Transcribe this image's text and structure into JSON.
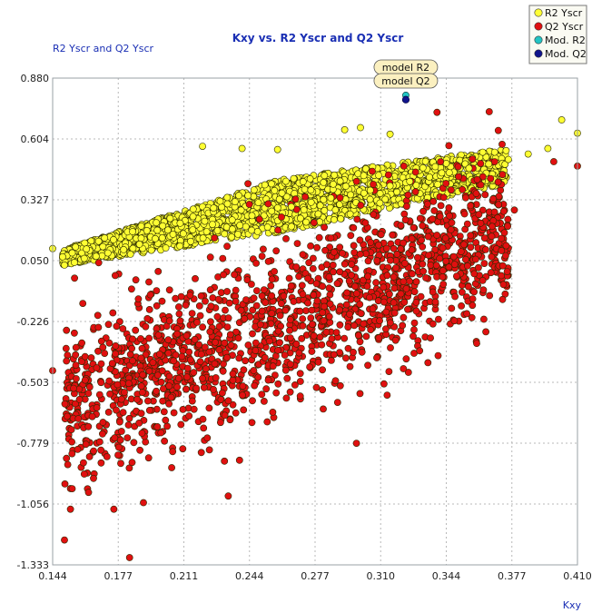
{
  "chart_data": {
    "type": "scatter",
    "title": "Kxy vs. R2 Yscr and Q2 Yscr",
    "xlabel": "Kxy",
    "ylabel": "R2 Yscr and Q2 Yscr",
    "xlim": [
      0.144,
      0.41
    ],
    "ylim": [
      -1.333,
      0.88
    ],
    "x_ticks": [
      "0.144",
      "0.177",
      "0.211",
      "0.244",
      "0.277",
      "0.310",
      "0.344",
      "0.377",
      "0.410"
    ],
    "y_ticks": [
      "0.880",
      "0.604",
      "0.327",
      "0.050",
      "-0.226",
      "-0.503",
      "-0.779",
      "-1.056",
      "-1.333"
    ],
    "grid": true,
    "legend_position": "top-right",
    "legend": [
      {
        "name": "R2 Yscr",
        "color": "#ffff33"
      },
      {
        "name": "Q2 Yscr",
        "color": "#e01010"
      },
      {
        "name": "Mod. R2",
        "color": "#22c4c4"
      },
      {
        "name": "Mod. Q2",
        "color": "#10148c"
      }
    ],
    "annotations": [
      {
        "text": "model R2",
        "x": 0.323,
        "y": 0.802
      },
      {
        "text": "model Q2",
        "x": 0.323,
        "y": 0.78
      }
    ],
    "series": [
      {
        "name": "R2 Yscr",
        "color": "#ffff33",
        "sample_points": [
          [
            0.144,
            0.105
          ],
          [
            0.15,
            0.03
          ],
          [
            0.155,
            0.042
          ],
          [
            0.16,
            0.06
          ],
          [
            0.166,
            0.07
          ],
          [
            0.172,
            0.085
          ],
          [
            0.18,
            0.1
          ],
          [
            0.188,
            0.125
          ],
          [
            0.196,
            0.15
          ],
          [
            0.205,
            0.17
          ],
          [
            0.215,
            0.19
          ],
          [
            0.225,
            0.215
          ],
          [
            0.235,
            0.235
          ],
          [
            0.245,
            0.255
          ],
          [
            0.255,
            0.275
          ],
          [
            0.265,
            0.295
          ],
          [
            0.275,
            0.315
          ],
          [
            0.285,
            0.335
          ],
          [
            0.295,
            0.35
          ],
          [
            0.305,
            0.37
          ],
          [
            0.315,
            0.39
          ],
          [
            0.325,
            0.41
          ],
          [
            0.335,
            0.43
          ],
          [
            0.345,
            0.45
          ],
          [
            0.355,
            0.47
          ],
          [
            0.365,
            0.49
          ],
          [
            0.375,
            0.51
          ],
          [
            0.385,
            0.535
          ],
          [
            0.395,
            0.56
          ],
          [
            0.41,
            0.63
          ],
          [
            0.402,
            0.69
          ],
          [
            0.22,
            0.57
          ],
          [
            0.24,
            0.56
          ],
          [
            0.258,
            0.555
          ],
          [
            0.292,
            0.645
          ],
          [
            0.3,
            0.655
          ],
          [
            0.315,
            0.625
          ]
        ],
        "bulk": {
          "x_range": [
            0.149,
            0.374
          ],
          "lower_curve": [
            [
              0.149,
              0.03
            ],
            [
              0.26,
              0.18
            ],
            [
              0.374,
              0.4
            ]
          ],
          "upper_curve": [
            [
              0.149,
              0.1
            ],
            [
              0.26,
              0.42
            ],
            [
              0.374,
              0.56
            ]
          ]
        }
      },
      {
        "name": "Q2 Yscr",
        "color": "#e01010",
        "sample_points": [
          [
            0.144,
            -0.45
          ],
          [
            0.15,
            -1.22
          ],
          [
            0.153,
            -1.08
          ],
          [
            0.16,
            -0.92
          ],
          [
            0.175,
            -1.08
          ],
          [
            0.183,
            -1.3
          ],
          [
            0.19,
            -1.05
          ],
          [
            0.233,
            -1.02
          ],
          [
            0.298,
            -0.78
          ],
          [
            0.33,
            -0.36
          ],
          [
            0.36,
            0.26
          ],
          [
            0.37,
            0.305
          ],
          [
            0.378,
            0.28
          ],
          [
            0.398,
            0.5
          ],
          [
            0.41,
            0.48
          ],
          [
            0.243,
            0.4
          ],
          [
            0.272,
            0.34
          ],
          [
            0.298,
            0.41
          ],
          [
            0.322,
            0.48
          ]
        ],
        "bulk": {
          "x_range": [
            0.15,
            0.375
          ],
          "center_line": [
            [
              0.15,
              -0.62
            ],
            [
              0.375,
              0.18
            ]
          ],
          "spread": 0.32
        }
      },
      {
        "name": "Mod. R2",
        "color": "#22c4c4",
        "points": [
          [
            0.323,
            0.802
          ]
        ]
      },
      {
        "name": "Mod. Q2",
        "color": "#10148c",
        "points": [
          [
            0.323,
            0.782
          ]
        ]
      }
    ]
  }
}
